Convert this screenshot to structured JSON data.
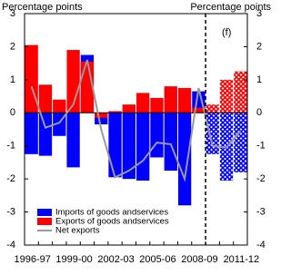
{
  "chart_data": {
    "type": "bar_line",
    "y_label": "Percentage points",
    "y2_label": "Percentage points",
    "annotation": "(f)",
    "categories": [
      "1996-97",
      null,
      null,
      "1999-00",
      null,
      null,
      "2002-03",
      null,
      null,
      "2005-06",
      null,
      null,
      "2008-09",
      null,
      null,
      "2011-12"
    ],
    "series": [
      {
        "name": "Imports of goods andservices",
        "type": "bar",
        "color": "#0000ff",
        "values": [
          -1.25,
          -1.3,
          -0.7,
          -1.65,
          1.75,
          -0.35,
          -1.95,
          -2.0,
          -2.05,
          -1.35,
          -1.75,
          -2.8,
          0.65,
          -1.25,
          -2.05,
          -1.8
        ]
      },
      {
        "name": "Exports of goods andservices",
        "type": "bar",
        "color": "#ff0000",
        "values": [
          2.05,
          0.85,
          0.4,
          1.9,
          1.55,
          -0.15,
          0.05,
          0.25,
          0.6,
          0.45,
          0.8,
          0.75,
          0.15,
          0.25,
          1.0,
          1.25
        ]
      },
      {
        "name": "Net exports",
        "type": "line",
        "color": "#999999",
        "values": [
          0.8,
          -0.45,
          -0.3,
          0.25,
          1.6,
          -0.5,
          -1.95,
          -1.75,
          -1.45,
          -0.9,
          -0.95,
          -2.0,
          0.75,
          -1.0,
          -1.05,
          -0.55
        ]
      }
    ],
    "forecast_start_index": 13,
    "ylim": [
      -4,
      3
    ],
    "yticks": [
      -4,
      -3,
      -2,
      -1,
      0,
      1,
      2,
      3
    ],
    "y2lim": [
      -4,
      3
    ],
    "y2ticks": [
      -4,
      -3,
      -2,
      -1,
      0,
      1,
      2,
      3
    ],
    "legend": "lower left"
  }
}
